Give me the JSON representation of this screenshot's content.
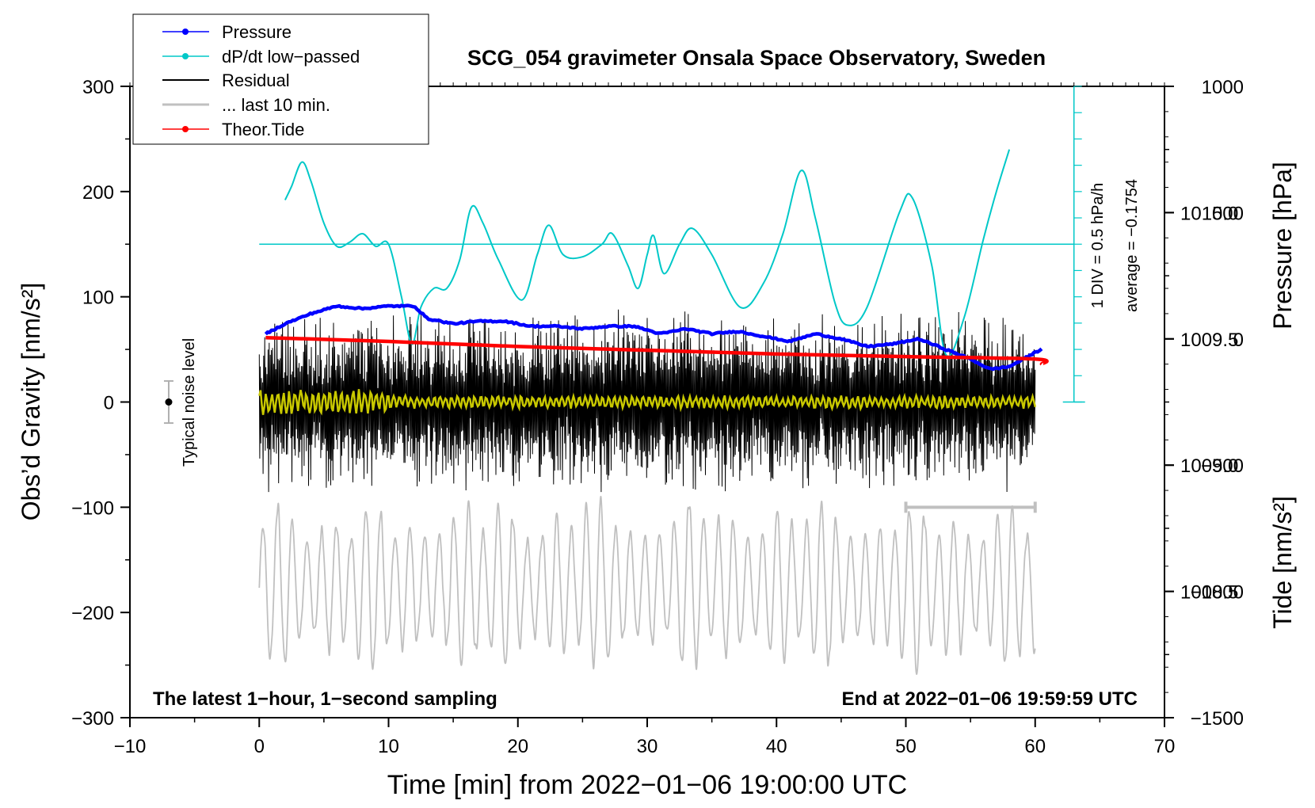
{
  "chart_data": {
    "type": "line",
    "title": "SCG_054 gravimeter Onsala Space Observatory, Sweden",
    "xlabel": "Time [min] from 2022−01−06 19:00:00 UTC",
    "ylabel_left": "Obs’d Gravity [nm/s²]",
    "ylabel_right_top": "Pressure [hPa]",
    "ylabel_right_bottom": "Tide [nm/s²]",
    "xlim": [
      -10,
      70
    ],
    "ylim_left": [
      -300,
      300
    ],
    "ylim_pressure": [
      1008.0,
      1010.5
    ],
    "ylim_tide": [
      -1500,
      1000
    ],
    "x_ticks": [
      "−10",
      "0",
      "10",
      "20",
      "30",
      "40",
      "50",
      "60",
      "70"
    ],
    "x_tick_values": [
      -10,
      0,
      10,
      20,
      30,
      40,
      50,
      60,
      70
    ],
    "y_left_ticks": [
      "300",
      "200",
      "100",
      "0",
      "−100",
      "−200",
      "−300"
    ],
    "y_left_tick_values": [
      300,
      200,
      100,
      0,
      -100,
      -200,
      -300
    ],
    "pressure_ticks": [
      "1010.0",
      "1009.5",
      "1009.0",
      "1008.5"
    ],
    "pressure_tick_values": [
      1010.0,
      1009.5,
      1009.0,
      1008.5
    ],
    "tide_ticks": [
      "1000",
      "500",
      "0",
      "−500",
      "−1000",
      "−1500"
    ],
    "tide_tick_values": [
      1000,
      500,
      0,
      -500,
      -1000,
      -1500
    ],
    "legend_position": "top-left",
    "legend": [
      {
        "name": "Pressure",
        "color": "#0000ff",
        "marker": true
      },
      {
        "name": "dP/dt low−passed",
        "color": "#00c8c8",
        "marker": true
      },
      {
        "name": "Residual",
        "color": "#000000",
        "marker": false
      },
      {
        "name": "... last 10 min.",
        "color": "#c0c0c0",
        "marker": false
      },
      {
        "name": "Theor.Tide",
        "color": "#ff0000",
        "marker": true
      }
    ],
    "annotations": {
      "bottom_left": "The latest 1−hour, 1−second sampling",
      "bottom_right": "End at 2022−01−06 19:59:59 UTC",
      "noise_label": "Typical noise level",
      "dpdt_scale": "1 DIV = 0.5 hPa/h",
      "dpdt_average": "average = −0.1754"
    },
    "noise_bar": {
      "x": -7,
      "center": 0,
      "half_range": 20
    },
    "last10_bar": {
      "x_start": 50,
      "x_end": 60,
      "y": -100
    },
    "series": [
      {
        "name": "Pressure",
        "axis": "pressure",
        "color": "#0000ff",
        "x": [
          0.5,
          2,
          4,
          6,
          8,
          10,
          12,
          13,
          15,
          17,
          19,
          21,
          23,
          25,
          27,
          29,
          31,
          33,
          35,
          37,
          39,
          41,
          43,
          45,
          47,
          49,
          51,
          53,
          55,
          56.5,
          58,
          60.5
        ],
        "y": [
          1009.52,
          1009.56,
          1009.6,
          1009.63,
          1009.62,
          1009.63,
          1009.63,
          1009.58,
          1009.56,
          1009.57,
          1009.57,
          1009.55,
          1009.55,
          1009.54,
          1009.55,
          1009.55,
          1009.52,
          1009.54,
          1009.52,
          1009.53,
          1009.51,
          1009.49,
          1009.52,
          1009.5,
          1009.47,
          1009.48,
          1009.5,
          1009.46,
          1009.42,
          1009.38,
          1009.39,
          1009.46
        ]
      },
      {
        "name": "dP/dt low−passed",
        "axis": "left",
        "color": "#00c8c8",
        "baseline": 150,
        "x": [
          2,
          2.5,
          3.3,
          4,
          5,
          6,
          7,
          8,
          9,
          10,
          11,
          11.8,
          12.5,
          13.5,
          14.5,
          15.5,
          16.4,
          17.3,
          18.5,
          20.3,
          21.5,
          22.4,
          23.5,
          25,
          26.5,
          27.3,
          28.5,
          29.3,
          30,
          30.5,
          31.3,
          32.5,
          33.5,
          35,
          37.2,
          39,
          40.5,
          41.9,
          43,
          44.5,
          45.5,
          47,
          49.5,
          50.5,
          52,
          53.1,
          54.5,
          56,
          57,
          58
        ],
        "y": [
          192,
          205,
          228,
          210,
          170,
          148,
          152,
          160,
          148,
          150,
          100,
          55,
          90,
          108,
          108,
          135,
          185,
          170,
          135,
          97,
          140,
          168,
          140,
          138,
          150,
          160,
          130,
          108,
          140,
          158,
          122,
          150,
          165,
          140,
          90,
          113,
          160,
          220,
          175,
          95,
          73,
          90,
          180,
          194,
          130,
          45,
          80,
          155,
          200,
          240
        ]
      },
      {
        "name": "Residual",
        "axis": "left",
        "color": "#000000",
        "x_range": [
          0,
          60
        ],
        "envelope": 90,
        "description": "1-second residual noise around 0"
      },
      {
        "name": "Residual smoothed",
        "axis": "left",
        "color": "#c8c800",
        "x_range": [
          0,
          60
        ],
        "envelope": 8
      },
      {
        "name": "... last 10 min.",
        "axis": "left",
        "color": "#c0c0c0",
        "x_range": [
          0,
          60
        ],
        "center": -175,
        "envelope": 90
      },
      {
        "name": "Theor.Tide",
        "axis": "tide",
        "color": "#ff0000",
        "x": [
          0.5,
          10,
          20,
          30,
          40,
          50,
          60,
          60.5
        ],
        "y": [
          5,
          -10,
          -30,
          -45,
          -60,
          -70,
          -80,
          -100
        ]
      }
    ]
  }
}
